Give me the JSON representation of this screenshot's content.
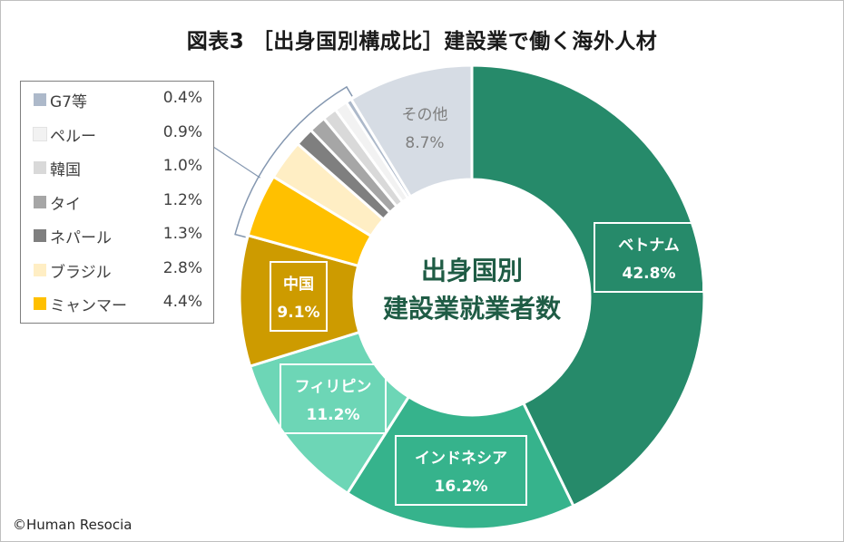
{
  "title": "図表3 ［出身国別構成比］建設業で働く海外人材",
  "center_label": {
    "line1": "出身国別",
    "line2": "建設業就業者数"
  },
  "credit": "©Human Resocia",
  "chart_data": {
    "type": "pie",
    "title": "図表3 ［出身国別構成比］建設業で働く海外人材",
    "unit": "%",
    "start": "12 o'clock",
    "direction": "clockwise",
    "slices": [
      {
        "label": "ベトナム",
        "value": 42.8,
        "display": "42.8%",
        "color": "#268a6a",
        "labelColor": "#ffffff",
        "boxed": true,
        "legend": false
      },
      {
        "label": "インドネシア",
        "value": 16.2,
        "display": "16.2%",
        "color": "#36b38c",
        "labelColor": "#ffffff",
        "boxed": true,
        "legend": false
      },
      {
        "label": "フィリピン",
        "value": 11.2,
        "display": "11.2%",
        "color": "#6dd6b6",
        "labelColor": "#ffffff",
        "boxed": true,
        "legend": false
      },
      {
        "label": "中国",
        "value": 9.1,
        "display": "9.1%",
        "color": "#cd9b00",
        "labelColor": "#ffffff",
        "boxed": true,
        "legend": false
      },
      {
        "label": "ミャンマー",
        "value": 4.4,
        "display": "4.4%",
        "color": "#ffc000",
        "legend": true
      },
      {
        "label": "ブラジル",
        "value": 2.8,
        "display": "2.8%",
        "color": "#ffeec4",
        "legend": true
      },
      {
        "label": "ネパール",
        "value": 1.3,
        "display": "1.3%",
        "color": "#7f7f7f",
        "legend": true
      },
      {
        "label": "タイ",
        "value": 1.2,
        "display": "1.2%",
        "color": "#a6a6a6",
        "legend": true
      },
      {
        "label": "韓国",
        "value": 1.0,
        "display": "1.0%",
        "color": "#d9d9d9",
        "legend": true
      },
      {
        "label": "ペルー",
        "value": 0.9,
        "display": "0.9%",
        "color": "#f2f2f2",
        "legend": true
      },
      {
        "label": "G7等",
        "value": 0.4,
        "display": "0.4%",
        "color": "#adb9ca",
        "legend": true
      },
      {
        "label": "その他",
        "value": 8.7,
        "display": "8.7%",
        "color": "#d6dce4",
        "labelColor": "#7f7f7f",
        "boxed": false,
        "legend": false
      }
    ]
  }
}
